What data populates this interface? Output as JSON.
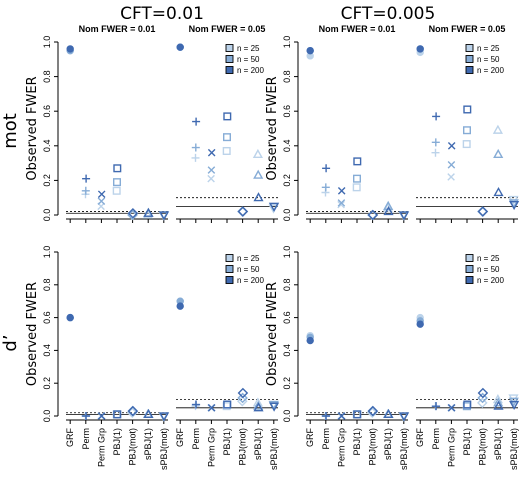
{
  "columns": [
    "CFT=0.01",
    "CFT=0.005"
  ],
  "rows": [
    "mot",
    "d’"
  ],
  "panel_titles": [
    "Nom FWER = 0.01",
    "Nom FWER = 0.05"
  ],
  "y_axis_label": "Observed FWER",
  "y_ticks": [
    "0.0",
    "0.2",
    "0.4",
    "0.6",
    "0.8",
    "1.0"
  ],
  "categories": [
    "GRF",
    "Perm",
    "Perm Grp",
    "PBJ(1)",
    "PBJ(mot)",
    "sPBJ(1)",
    "sPBJ(mot)"
  ],
  "legend": [
    "n = 25",
    "n = 50",
    "n = 200"
  ],
  "colors": {
    "n25": "#bcd3ea",
    "n50": "#86acd6",
    "n200": "#3f69b0"
  },
  "chart_data": {
    "type": "scatter",
    "ylim": [
      0,
      1
    ],
    "xlabel": "",
    "ylabel": "Observed FWER",
    "categories": [
      "GRF",
      "Perm",
      "Perm Grp",
      "PBJ(1)",
      "PBJ(mot)",
      "sPBJ(1)",
      "sPBJ(mot)"
    ],
    "markers": [
      "circle",
      "plus",
      "cross",
      "square",
      "diamond",
      "triangle-up",
      "triangle-down"
    ],
    "series_names": [
      "n = 25",
      "n = 50",
      "n = 200"
    ],
    "panels": [
      {
        "row": "mot",
        "column": "CFT=0.01",
        "title": "Nom FWER = 0.01",
        "nominal": 0.01,
        "legend": false,
        "values": [
          [
            0.95,
            0.95,
            0.96
          ],
          [
            0.12,
            0.14,
            0.21
          ],
          [
            0.05,
            0.08,
            0.12
          ],
          [
            0.14,
            0.19,
            0.27
          ],
          [
            0.0,
            0.0,
            0.01
          ],
          [
            0.0,
            0.01,
            0.01
          ],
          [
            0.0,
            0.0,
            0.0
          ]
        ]
      },
      {
        "row": "mot",
        "column": "CFT=0.01",
        "title": "Nom FWER = 0.05",
        "nominal": 0.05,
        "legend": true,
        "values": [
          [
            0.97,
            0.97,
            0.97
          ],
          [
            0.33,
            0.39,
            0.54
          ],
          [
            0.21,
            0.26,
            0.36
          ],
          [
            0.37,
            0.45,
            0.57
          ],
          [
            0.02,
            0.02,
            0.02
          ],
          [
            0.35,
            0.23,
            0.1
          ],
          [
            0.04,
            0.05,
            0.05
          ]
        ]
      },
      {
        "row": "mot",
        "column": "CFT=0.005",
        "title": "Nom FWER = 0.01",
        "nominal": 0.01,
        "legend": false,
        "values": [
          [
            0.92,
            0.95,
            0.95
          ],
          [
            0.13,
            0.16,
            0.27
          ],
          [
            0.06,
            0.07,
            0.14
          ],
          [
            0.16,
            0.21,
            0.31
          ],
          [
            0.0,
            0.0,
            0.0
          ],
          [
            0.04,
            0.05,
            0.02
          ],
          [
            0.0,
            0.0,
            0.0
          ]
        ]
      },
      {
        "row": "mot",
        "column": "CFT=0.005",
        "title": "Nom FWER = 0.05",
        "nominal": 0.05,
        "legend": true,
        "values": [
          [
            0.94,
            0.96,
            0.96
          ],
          [
            0.36,
            0.42,
            0.57
          ],
          [
            0.22,
            0.29,
            0.4
          ],
          [
            0.41,
            0.49,
            0.61
          ],
          [
            0.02,
            0.02,
            0.02
          ],
          [
            0.49,
            0.35,
            0.13
          ],
          [
            0.09,
            0.07,
            0.06
          ]
        ]
      },
      {
        "row": "d’",
        "column": "CFT=0.01",
        "title": "",
        "nominal": 0.01,
        "legend": false,
        "values": [
          [
            0.6,
            0.6,
            0.6
          ],
          [
            0.0,
            0.0,
            0.0
          ],
          [
            0.0,
            0.0,
            0.0
          ],
          [
            0.01,
            0.01,
            0.01
          ],
          [
            0.02,
            0.03,
            0.03
          ],
          [
            0.01,
            0.01,
            0.01
          ],
          [
            0.0,
            0.0,
            0.0
          ]
        ]
      },
      {
        "row": "d’",
        "column": "CFT=0.01",
        "title": "",
        "nominal": 0.05,
        "legend": true,
        "values": [
          [
            0.7,
            0.7,
            0.67
          ],
          [
            0.06,
            0.07,
            0.07
          ],
          [
            0.05,
            0.05,
            0.05
          ],
          [
            0.06,
            0.07,
            0.07
          ],
          [
            0.09,
            0.11,
            0.14
          ],
          [
            0.08,
            0.06,
            0.05
          ],
          [
            0.07,
            0.07,
            0.06
          ]
        ]
      },
      {
        "row": "d’",
        "column": "CFT=0.005",
        "title": "",
        "nominal": 0.01,
        "legend": false,
        "values": [
          [
            0.49,
            0.48,
            0.46
          ],
          [
            0.0,
            0.0,
            0.0
          ],
          [
            0.0,
            0.0,
            0.0
          ],
          [
            0.01,
            0.01,
            0.01
          ],
          [
            0.02,
            0.03,
            0.03
          ],
          [
            0.01,
            0.01,
            0.01
          ],
          [
            0.0,
            0.0,
            0.0
          ]
        ]
      },
      {
        "row": "d’",
        "column": "CFT=0.005",
        "title": "",
        "nominal": 0.05,
        "legend": true,
        "values": [
          [
            0.6,
            0.58,
            0.56
          ],
          [
            0.06,
            0.06,
            0.06
          ],
          [
            0.05,
            0.05,
            0.05
          ],
          [
            0.06,
            0.06,
            0.07
          ],
          [
            0.08,
            0.11,
            0.14
          ],
          [
            0.1,
            0.08,
            0.06
          ],
          [
            0.11,
            0.09,
            0.07
          ]
        ]
      }
    ]
  }
}
